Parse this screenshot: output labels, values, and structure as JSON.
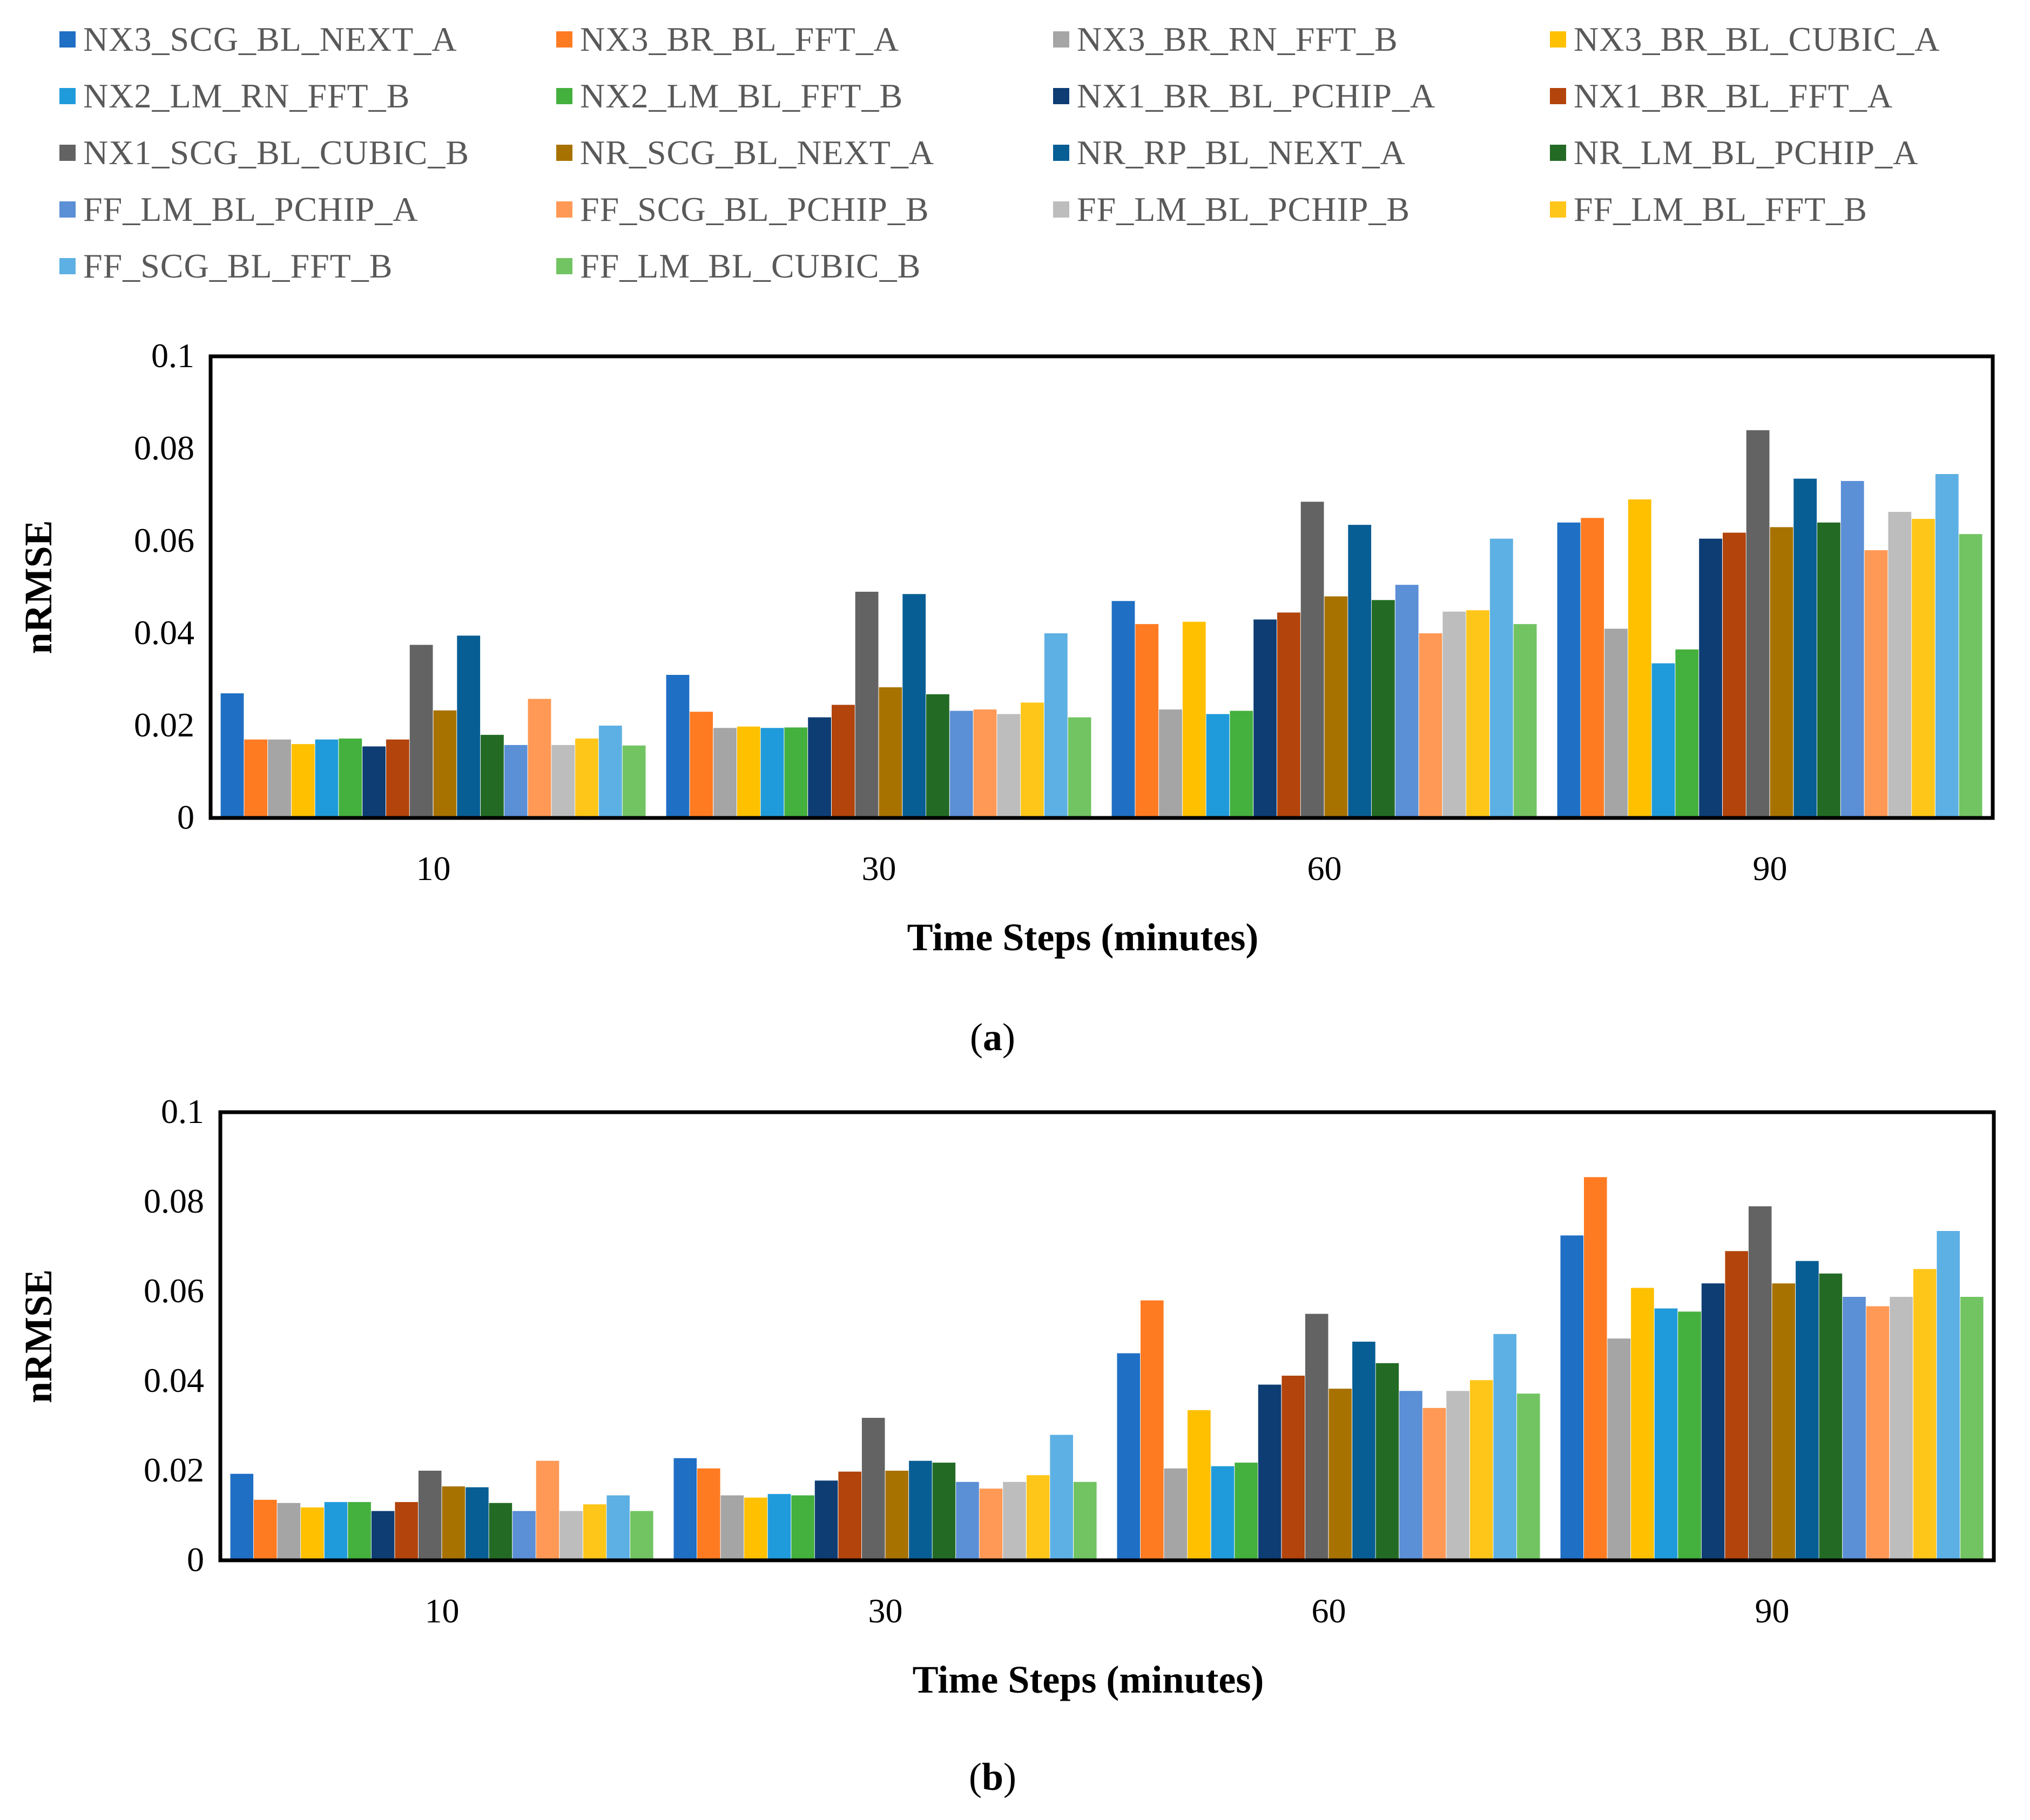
{
  "legend": [
    {
      "name": "NX3_SCG_BL_NEXT_A",
      "color": "#1F6FC5"
    },
    {
      "name": "NX3_BR_BL_FFT_A",
      "color": "#FF7B22"
    },
    {
      "name": "NX3_BR_RN_FFT_B",
      "color": "#A5A5A5"
    },
    {
      "name": "NX3_BR_BL_CUBIC_A",
      "color": "#FFC000"
    },
    {
      "name": "NX2_LM_RN_FFT_B",
      "color": "#1F9BDB"
    },
    {
      "name": "NX2_LM_BL_FFT_B",
      "color": "#44B03E"
    },
    {
      "name": "NX1_BR_BL_PCHIP_A",
      "color": "#0E3D74"
    },
    {
      "name": "NX1_BR_BL_FFT_A",
      "color": "#B2440C"
    },
    {
      "name": "NX1_SCG_BL_CUBIC_B",
      "color": "#636363"
    },
    {
      "name": "NR_SCG_BL_NEXT_A",
      "color": "#A87200"
    },
    {
      "name": "NR_RP_BL_NEXT_A",
      "color": "#075E94"
    },
    {
      "name": "NR_LM_BL_PCHIP_A",
      "color": "#236B25"
    },
    {
      "name": "FF_LM_BL_PCHIP_A",
      "color": "#5B8FD6"
    },
    {
      "name": "FF_SCG_BL_PCHIP_B",
      "color": "#FF9955"
    },
    {
      "name": "FF_LM_BL_PCHIP_B",
      "color": "#BDBDBD"
    },
    {
      "name": "FF_LM_BL_FFT_B",
      "color": "#FFC61A"
    },
    {
      "name": "FF_SCG_BL_FFT_B",
      "color": "#5DB0E3"
    },
    {
      "name": "FF_LM_BL_CUBIC_B",
      "color": "#72C463"
    }
  ],
  "chart_data": [
    {
      "type": "bar",
      "panel_label_open": "(",
      "panel_label_letter": "a",
      "panel_label_close": ")",
      "xlabel": "Time Steps (minutes)",
      "ylabel": "nRMSE",
      "categories": [
        "10",
        "30",
        "60",
        "90"
      ],
      "ylim": [
        0,
        0.1
      ],
      "yticks": [
        "0",
        "0.02",
        "0.04",
        "0.06",
        "0.08",
        "0.1"
      ],
      "series": [
        {
          "name": "NX3_SCG_BL_NEXT_A",
          "values": [
            0.027,
            0.031,
            0.047,
            0.064
          ]
        },
        {
          "name": "NX3_BR_BL_FFT_A",
          "values": [
            0.017,
            0.023,
            0.042,
            0.065
          ]
        },
        {
          "name": "NX3_BR_RN_FFT_B",
          "values": [
            0.017,
            0.0195,
            0.0235,
            0.041
          ]
        },
        {
          "name": "NX3_BR_BL_CUBIC_A",
          "values": [
            0.016,
            0.0198,
            0.0425,
            0.069
          ]
        },
        {
          "name": "NX2_LM_RN_FFT_B",
          "values": [
            0.017,
            0.0195,
            0.0225,
            0.0335
          ]
        },
        {
          "name": "NX2_LM_BL_FFT_B",
          "values": [
            0.0172,
            0.0196,
            0.0232,
            0.0365
          ]
        },
        {
          "name": "NX1_BR_BL_PCHIP_A",
          "values": [
            0.0155,
            0.0218,
            0.043,
            0.0605
          ]
        },
        {
          "name": "NX1_BR_BL_FFT_A",
          "values": [
            0.017,
            0.0245,
            0.0445,
            0.0618
          ]
        },
        {
          "name": "NX1_SCG_BL_CUBIC_B",
          "values": [
            0.0375,
            0.049,
            0.0685,
            0.084
          ]
        },
        {
          "name": "NR_SCG_BL_NEXT_A",
          "values": [
            0.0233,
            0.0283,
            0.048,
            0.063
          ]
        },
        {
          "name": "NR_RP_BL_NEXT_A",
          "values": [
            0.0395,
            0.0485,
            0.0635,
            0.0735
          ]
        },
        {
          "name": "NR_LM_BL_PCHIP_A",
          "values": [
            0.018,
            0.0268,
            0.0472,
            0.064
          ]
        },
        {
          "name": "FF_LM_BL_PCHIP_A",
          "values": [
            0.0158,
            0.0232,
            0.0505,
            0.073
          ]
        },
        {
          "name": "FF_SCG_BL_PCHIP_B",
          "values": [
            0.0258,
            0.0235,
            0.04,
            0.058
          ]
        },
        {
          "name": "FF_LM_BL_PCHIP_B",
          "values": [
            0.0158,
            0.0225,
            0.0447,
            0.0663
          ]
        },
        {
          "name": "FF_LM_BL_FFT_B",
          "values": [
            0.0172,
            0.025,
            0.045,
            0.0648
          ]
        },
        {
          "name": "FF_SCG_BL_FFT_B",
          "values": [
            0.02,
            0.04,
            0.0605,
            0.0745
          ]
        },
        {
          "name": "FF_LM_BL_CUBIC_B",
          "values": [
            0.0157,
            0.0218,
            0.042,
            0.0615
          ]
        }
      ]
    },
    {
      "type": "bar",
      "panel_label_open": "(",
      "panel_label_letter": "b",
      "panel_label_close": ")",
      "xlabel": "Time Steps (minutes)",
      "ylabel": "nRMSE",
      "categories": [
        "10",
        "30",
        "60",
        "90"
      ],
      "ylim": [
        0,
        0.1
      ],
      "yticks": [
        "0",
        "0.02",
        "0.04",
        "0.06",
        "0.08",
        "0.1"
      ],
      "series": [
        {
          "name": "NX3_SCG_BL_NEXT_A",
          "values": [
            0.0193,
            0.0228,
            0.0462,
            0.0725
          ]
        },
        {
          "name": "NX3_BR_BL_FFT_A",
          "values": [
            0.0135,
            0.0205,
            0.058,
            0.0855
          ]
        },
        {
          "name": "NX3_BR_RN_FFT_B",
          "values": [
            0.0128,
            0.0145,
            0.0205,
            0.0495
          ]
        },
        {
          "name": "NX3_BR_BL_CUBIC_A",
          "values": [
            0.0118,
            0.014,
            0.0335,
            0.0608
          ]
        },
        {
          "name": "NX2_LM_RN_FFT_B",
          "values": [
            0.013,
            0.0148,
            0.021,
            0.0562
          ]
        },
        {
          "name": "NX2_LM_BL_FFT_B",
          "values": [
            0.013,
            0.0145,
            0.0218,
            0.0555
          ]
        },
        {
          "name": "NX1_BR_BL_PCHIP_A",
          "values": [
            0.011,
            0.0178,
            0.0392,
            0.0618
          ]
        },
        {
          "name": "NX1_BR_BL_FFT_A",
          "values": [
            0.013,
            0.0198,
            0.0412,
            0.069
          ]
        },
        {
          "name": "NX1_SCG_BL_CUBIC_B",
          "values": [
            0.02,
            0.0318,
            0.055,
            0.079
          ]
        },
        {
          "name": "NR_SCG_BL_NEXT_A",
          "values": [
            0.0165,
            0.02,
            0.0383,
            0.0618
          ]
        },
        {
          "name": "NR_RP_BL_NEXT_A",
          "values": [
            0.0163,
            0.0222,
            0.0488,
            0.0668
          ]
        },
        {
          "name": "NR_LM_BL_PCHIP_A",
          "values": [
            0.0128,
            0.0218,
            0.044,
            0.064
          ]
        },
        {
          "name": "FF_LM_BL_PCHIP_A",
          "values": [
            0.011,
            0.0175,
            0.0378,
            0.0588
          ]
        },
        {
          "name": "FF_SCG_BL_PCHIP_B",
          "values": [
            0.0222,
            0.016,
            0.034,
            0.0567
          ]
        },
        {
          "name": "FF_LM_BL_PCHIP_B",
          "values": [
            0.011,
            0.0175,
            0.0378,
            0.0588
          ]
        },
        {
          "name": "FF_LM_BL_FFT_B",
          "values": [
            0.0125,
            0.019,
            0.0402,
            0.065
          ]
        },
        {
          "name": "FF_SCG_BL_FFT_B",
          "values": [
            0.0145,
            0.028,
            0.0505,
            0.0735
          ]
        },
        {
          "name": "FF_LM_BL_CUBIC_B",
          "values": [
            0.011,
            0.0175,
            0.0372,
            0.0588
          ]
        }
      ]
    }
  ]
}
